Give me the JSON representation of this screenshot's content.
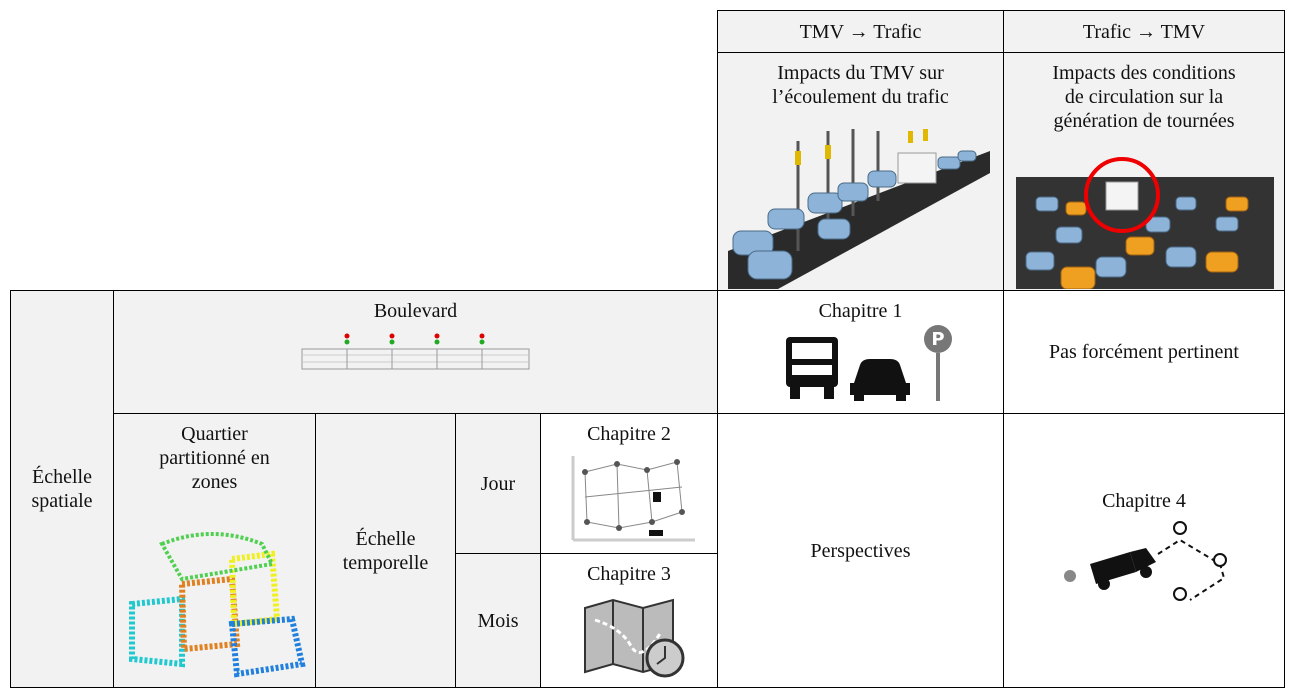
{
  "header": {
    "columns": [
      {
        "title": "TMV → Trafic",
        "description": [
          "Impacts du TMV sur",
          "l’écoulement du trafic"
        ]
      },
      {
        "title": "Trafic → TMV",
        "description": [
          "Impacts des conditions",
          "de circulation sur la",
          "génération de tournées"
        ]
      }
    ]
  },
  "table": {
    "row_label": [
      "Échelle",
      "spatiale"
    ],
    "boulevard": "Boulevard",
    "chapitre1": "Chapitre 1",
    "not_relevant": "Pas forcément pertinent",
    "quartier": [
      "Quartier",
      "partitionné en",
      "zones"
    ],
    "temporal_label": [
      "Échelle",
      "temporelle"
    ],
    "jour": "Jour",
    "mois": "Mois",
    "chapitre2": "Chapitre 2",
    "chapitre3": "Chapitre 3",
    "perspectives": "Perspectives",
    "chapitre4": "Chapitre 4"
  }
}
